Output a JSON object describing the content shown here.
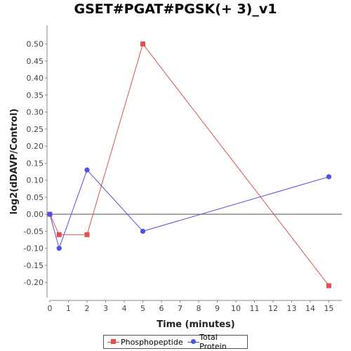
{
  "chart_data": {
    "type": "line",
    "title": "GSET#PGAT#PGSK(+ 3)_v1",
    "xlabel": "Time (minutes)",
    "ylabel": "log2(dDAVP/Control)",
    "xlim": [
      0,
      15.7
    ],
    "ylim": [
      -0.245,
      0.555
    ],
    "x_ticks": [
      0,
      1,
      2,
      3,
      4,
      5,
      6,
      7,
      8,
      9,
      10,
      11,
      12,
      13,
      14,
      15
    ],
    "y_ticks": [
      -0.2,
      -0.15,
      -0.1,
      -0.05,
      0.0,
      0.05,
      0.1,
      0.15,
      0.2,
      0.25,
      0.3,
      0.35,
      0.4,
      0.45,
      0.5
    ],
    "y_tick_labels": [
      "-0.20",
      "-0.15",
      "-0.10",
      "-0.05",
      "0.00",
      "0.05",
      "0.10",
      "0.15",
      "0.20",
      "0.25",
      "0.30",
      "0.35",
      "0.40",
      "0.45",
      "0.50"
    ],
    "series": [
      {
        "name": "Phosphopeptide",
        "color": "#e05050",
        "marker": "square",
        "x": [
          0,
          0.5,
          2,
          5,
          15
        ],
        "y": [
          0.0,
          -0.06,
          -0.06,
          0.5,
          -0.21
        ]
      },
      {
        "name": "Total Protein",
        "color": "#5050e8",
        "marker": "circle",
        "x": [
          0,
          0.5,
          2,
          5,
          15
        ],
        "y": [
          0.0,
          -0.1,
          0.13,
          -0.05,
          0.11
        ]
      }
    ],
    "grid": false,
    "legend_position": "bottom-center",
    "zero_line": true
  }
}
